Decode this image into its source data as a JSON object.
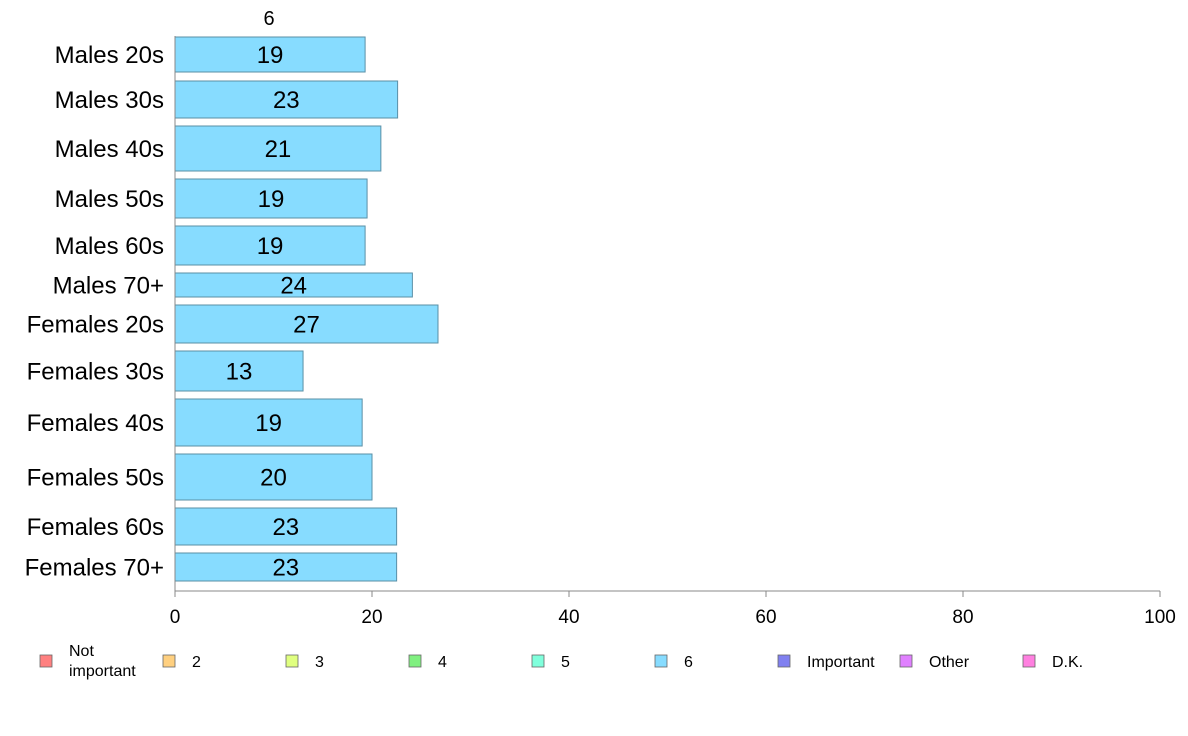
{
  "chart_data": {
    "type": "bar",
    "orientation": "horizontal",
    "stacked": true,
    "top_label": "6",
    "categories": [
      "Males 20s",
      "Males 30s",
      "Males 40s",
      "Males 50s",
      "Males 60s",
      "Males 70+",
      "Females 20s",
      "Females 30s",
      "Females 40s",
      "Females 50s",
      "Females 60s",
      "Females 70+"
    ],
    "series": [
      {
        "name": "6",
        "color": "#87dcff",
        "values": [
          19.3,
          22.6,
          20.9,
          19.5,
          19.3,
          24.1,
          26.7,
          13.0,
          19.0,
          20.0,
          22.5,
          22.5
        ],
        "labels": [
          "19",
          "23",
          "21",
          "19",
          "19",
          "24",
          "27",
          "13",
          "19",
          "20",
          "23",
          "23"
        ]
      }
    ],
    "xlim": [
      0,
      100
    ],
    "xticks": [
      0,
      20,
      40,
      60,
      80,
      100
    ],
    "grid": false,
    "legend_position": "bottom",
    "legend": [
      {
        "label": "Not important",
        "lines": [
          "Not",
          "important"
        ],
        "color": "#ff8080"
      },
      {
        "label": "2",
        "lines": [
          "2"
        ],
        "color": "#ffd080"
      },
      {
        "label": "3",
        "lines": [
          "3"
        ],
        "color": "#e0ff80"
      },
      {
        "label": "4",
        "lines": [
          "4"
        ],
        "color": "#80f080"
      },
      {
        "label": "5",
        "lines": [
          "5"
        ],
        "color": "#80ffdc"
      },
      {
        "label": "6",
        "lines": [
          "6"
        ],
        "color": "#87dcff"
      },
      {
        "label": "Important",
        "lines": [
          "Important"
        ],
        "color": "#8080f0"
      },
      {
        "label": "Other",
        "lines": [
          "Other"
        ],
        "color": "#e080ff"
      },
      {
        "label": "D.K.",
        "lines": [
          "D.K."
        ],
        "color": "#ff80e0"
      }
    ]
  }
}
